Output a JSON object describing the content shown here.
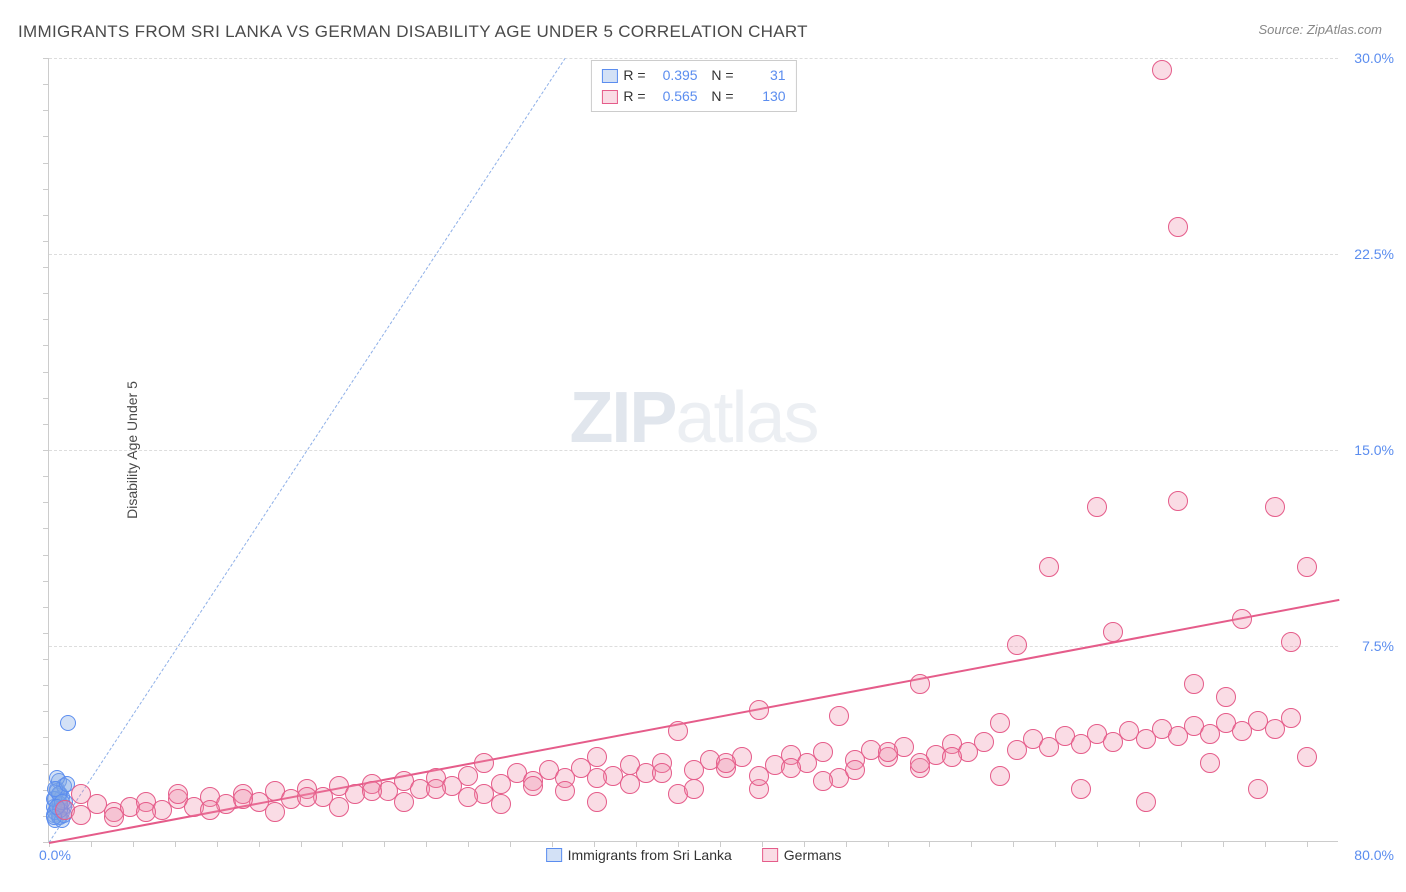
{
  "title": "IMMIGRANTS FROM SRI LANKA VS GERMAN DISABILITY AGE UNDER 5 CORRELATION CHART",
  "source": "Source: ZipAtlas.com",
  "ylabel": "Disability Age Under 5",
  "watermark_a": "ZIP",
  "watermark_b": "atlas",
  "chart": {
    "type": "scatter",
    "xlim": [
      0,
      80
    ],
    "ylim": [
      0,
      30
    ],
    "xtick_labels": {
      "left": "0.0%",
      "right": "80.0%"
    },
    "ytick_labels": [
      "7.5%",
      "15.0%",
      "22.5%",
      "30.0%"
    ],
    "ytick_vals": [
      7.5,
      15.0,
      22.5,
      30.0
    ],
    "xtick_minor_step": 2.6,
    "ytick_minor_step": 1.0,
    "background_color": "#ffffff",
    "grid_color": "#dddddd",
    "axis_color": "#cccccc",
    "tick_label_color": "#5b8def"
  },
  "series": [
    {
      "name": "Immigrants from Sri Lanka",
      "fill": "rgba(130,170,230,0.35)",
      "stroke": "#5b8def",
      "r_label": "R =",
      "r_value": "0.395",
      "n_label": "N =",
      "n_value": "31",
      "marker_radius": 8,
      "trend": {
        "x1": 0,
        "y1": 0,
        "x2": 32,
        "y2": 30,
        "dash": true,
        "color": "#8fb0e8",
        "width": 1
      },
      "points": [
        [
          0.3,
          1.0
        ],
        [
          0.5,
          1.2
        ],
        [
          0.6,
          1.4
        ],
        [
          0.4,
          1.6
        ],
        [
          0.7,
          1.8
        ],
        [
          0.8,
          1.1
        ],
        [
          0.5,
          2.0
        ],
        [
          0.9,
          1.3
        ],
        [
          0.6,
          2.3
        ],
        [
          1.0,
          1.5
        ],
        [
          0.4,
          0.8
        ],
        [
          0.7,
          0.9
        ],
        [
          0.3,
          1.3
        ],
        [
          0.8,
          1.7
        ],
        [
          0.5,
          1.9
        ],
        [
          0.9,
          2.1
        ],
        [
          0.6,
          0.9
        ],
        [
          0.4,
          1.1
        ],
        [
          0.7,
          1.4
        ],
        [
          0.3,
          1.6
        ],
        [
          0.8,
          0.8
        ],
        [
          0.5,
          2.4
        ],
        [
          0.9,
          1.0
        ],
        [
          0.6,
          1.8
        ],
        [
          0.4,
          2.0
        ],
        [
          0.7,
          1.2
        ],
        [
          0.3,
          0.9
        ],
        [
          0.8,
          1.5
        ],
        [
          1.1,
          2.2
        ],
        [
          1.2,
          4.5
        ],
        [
          0.5,
          1.3
        ]
      ]
    },
    {
      "name": "Germans",
      "fill": "rgba(240,140,170,0.30)",
      "stroke": "#e55c8a",
      "r_label": "R =",
      "r_value": "0.565",
      "n_label": "N =",
      "n_value": "130",
      "marker_radius": 10,
      "trend": {
        "x1": 0,
        "y1": 0,
        "x2": 80,
        "y2": 9.3,
        "dash": false,
        "color": "#e55c8a",
        "width": 2
      },
      "points": [
        [
          1,
          1.2
        ],
        [
          2,
          1.0
        ],
        [
          3,
          1.4
        ],
        [
          4,
          1.1
        ],
        [
          5,
          1.3
        ],
        [
          6,
          1.5
        ],
        [
          7,
          1.2
        ],
        [
          8,
          1.6
        ],
        [
          9,
          1.3
        ],
        [
          10,
          1.7
        ],
        [
          11,
          1.4
        ],
        [
          12,
          1.8
        ],
        [
          13,
          1.5
        ],
        [
          14,
          1.9
        ],
        [
          15,
          1.6
        ],
        [
          16,
          2.0
        ],
        [
          17,
          1.7
        ],
        [
          18,
          2.1
        ],
        [
          19,
          1.8
        ],
        [
          20,
          2.2
        ],
        [
          21,
          1.9
        ],
        [
          22,
          2.3
        ],
        [
          23,
          2.0
        ],
        [
          24,
          2.4
        ],
        [
          25,
          2.1
        ],
        [
          26,
          2.5
        ],
        [
          27,
          1.8
        ],
        [
          27,
          3.0
        ],
        [
          28,
          2.2
        ],
        [
          29,
          2.6
        ],
        [
          30,
          2.3
        ],
        [
          31,
          2.7
        ],
        [
          32,
          2.4
        ],
        [
          33,
          2.8
        ],
        [
          34,
          1.5
        ],
        [
          34,
          3.2
        ],
        [
          35,
          2.5
        ],
        [
          36,
          2.9
        ],
        [
          37,
          2.6
        ],
        [
          38,
          3.0
        ],
        [
          39,
          1.8
        ],
        [
          39,
          4.2
        ],
        [
          40,
          2.7
        ],
        [
          41,
          3.1
        ],
        [
          42,
          2.8
        ],
        [
          43,
          3.2
        ],
        [
          44,
          2.0
        ],
        [
          44,
          5.0
        ],
        [
          45,
          2.9
        ],
        [
          46,
          3.3
        ],
        [
          47,
          3.0
        ],
        [
          48,
          3.4
        ],
        [
          49,
          2.4
        ],
        [
          49,
          4.8
        ],
        [
          50,
          3.1
        ],
        [
          51,
          3.5
        ],
        [
          52,
          3.2
        ],
        [
          53,
          3.6
        ],
        [
          54,
          2.8
        ],
        [
          54,
          6.0
        ],
        [
          55,
          3.3
        ],
        [
          56,
          3.7
        ],
        [
          57,
          3.4
        ],
        [
          58,
          3.8
        ],
        [
          59,
          4.5
        ],
        [
          59,
          2.5
        ],
        [
          60,
          3.5
        ],
        [
          60,
          7.5
        ],
        [
          61,
          3.9
        ],
        [
          62,
          3.6
        ],
        [
          62,
          10.5
        ],
        [
          63,
          4.0
        ],
        [
          64,
          3.7
        ],
        [
          64,
          2.0
        ],
        [
          65,
          4.1
        ],
        [
          65,
          12.8
        ],
        [
          66,
          3.8
        ],
        [
          66,
          8.0
        ],
        [
          67,
          4.2
        ],
        [
          68,
          3.9
        ],
        [
          68,
          1.5
        ],
        [
          69,
          4.3
        ],
        [
          69,
          29.5
        ],
        [
          70,
          4.0
        ],
        [
          70,
          13.0
        ],
        [
          70,
          23.5
        ],
        [
          71,
          4.4
        ],
        [
          71,
          6.0
        ],
        [
          72,
          4.1
        ],
        [
          72,
          3.0
        ],
        [
          73,
          4.5
        ],
        [
          73,
          5.5
        ],
        [
          74,
          4.2
        ],
        [
          74,
          8.5
        ],
        [
          75,
          4.6
        ],
        [
          75,
          2.0
        ],
        [
          76,
          4.3
        ],
        [
          76,
          12.8
        ],
        [
          77,
          4.7
        ],
        [
          77,
          7.6
        ],
        [
          78,
          10.5
        ],
        [
          78,
          3.2
        ],
        [
          2,
          1.8
        ],
        [
          4,
          0.9
        ],
        [
          6,
          1.1
        ],
        [
          8,
          1.8
        ],
        [
          10,
          1.2
        ],
        [
          12,
          1.6
        ],
        [
          14,
          1.1
        ],
        [
          16,
          1.7
        ],
        [
          18,
          1.3
        ],
        [
          20,
          1.9
        ],
        [
          22,
          1.5
        ],
        [
          24,
          2.0
        ],
        [
          26,
          1.7
        ],
        [
          28,
          1.4
        ],
        [
          30,
          2.1
        ],
        [
          32,
          1.9
        ],
        [
          34,
          2.4
        ],
        [
          36,
          2.2
        ],
        [
          38,
          2.6
        ],
        [
          40,
          2.0
        ],
        [
          42,
          3.0
        ],
        [
          44,
          2.5
        ],
        [
          46,
          2.8
        ],
        [
          48,
          2.3
        ],
        [
          50,
          2.7
        ],
        [
          52,
          3.4
        ],
        [
          54,
          3.0
        ],
        [
          56,
          3.2
        ]
      ]
    }
  ],
  "bottom_legend": [
    {
      "swatch_fill": "rgba(130,170,230,0.35)",
      "swatch_stroke": "#5b8def",
      "label": "Immigrants from Sri Lanka"
    },
    {
      "swatch_fill": "rgba(240,140,170,0.30)",
      "swatch_stroke": "#e55c8a",
      "label": "Germans"
    }
  ]
}
